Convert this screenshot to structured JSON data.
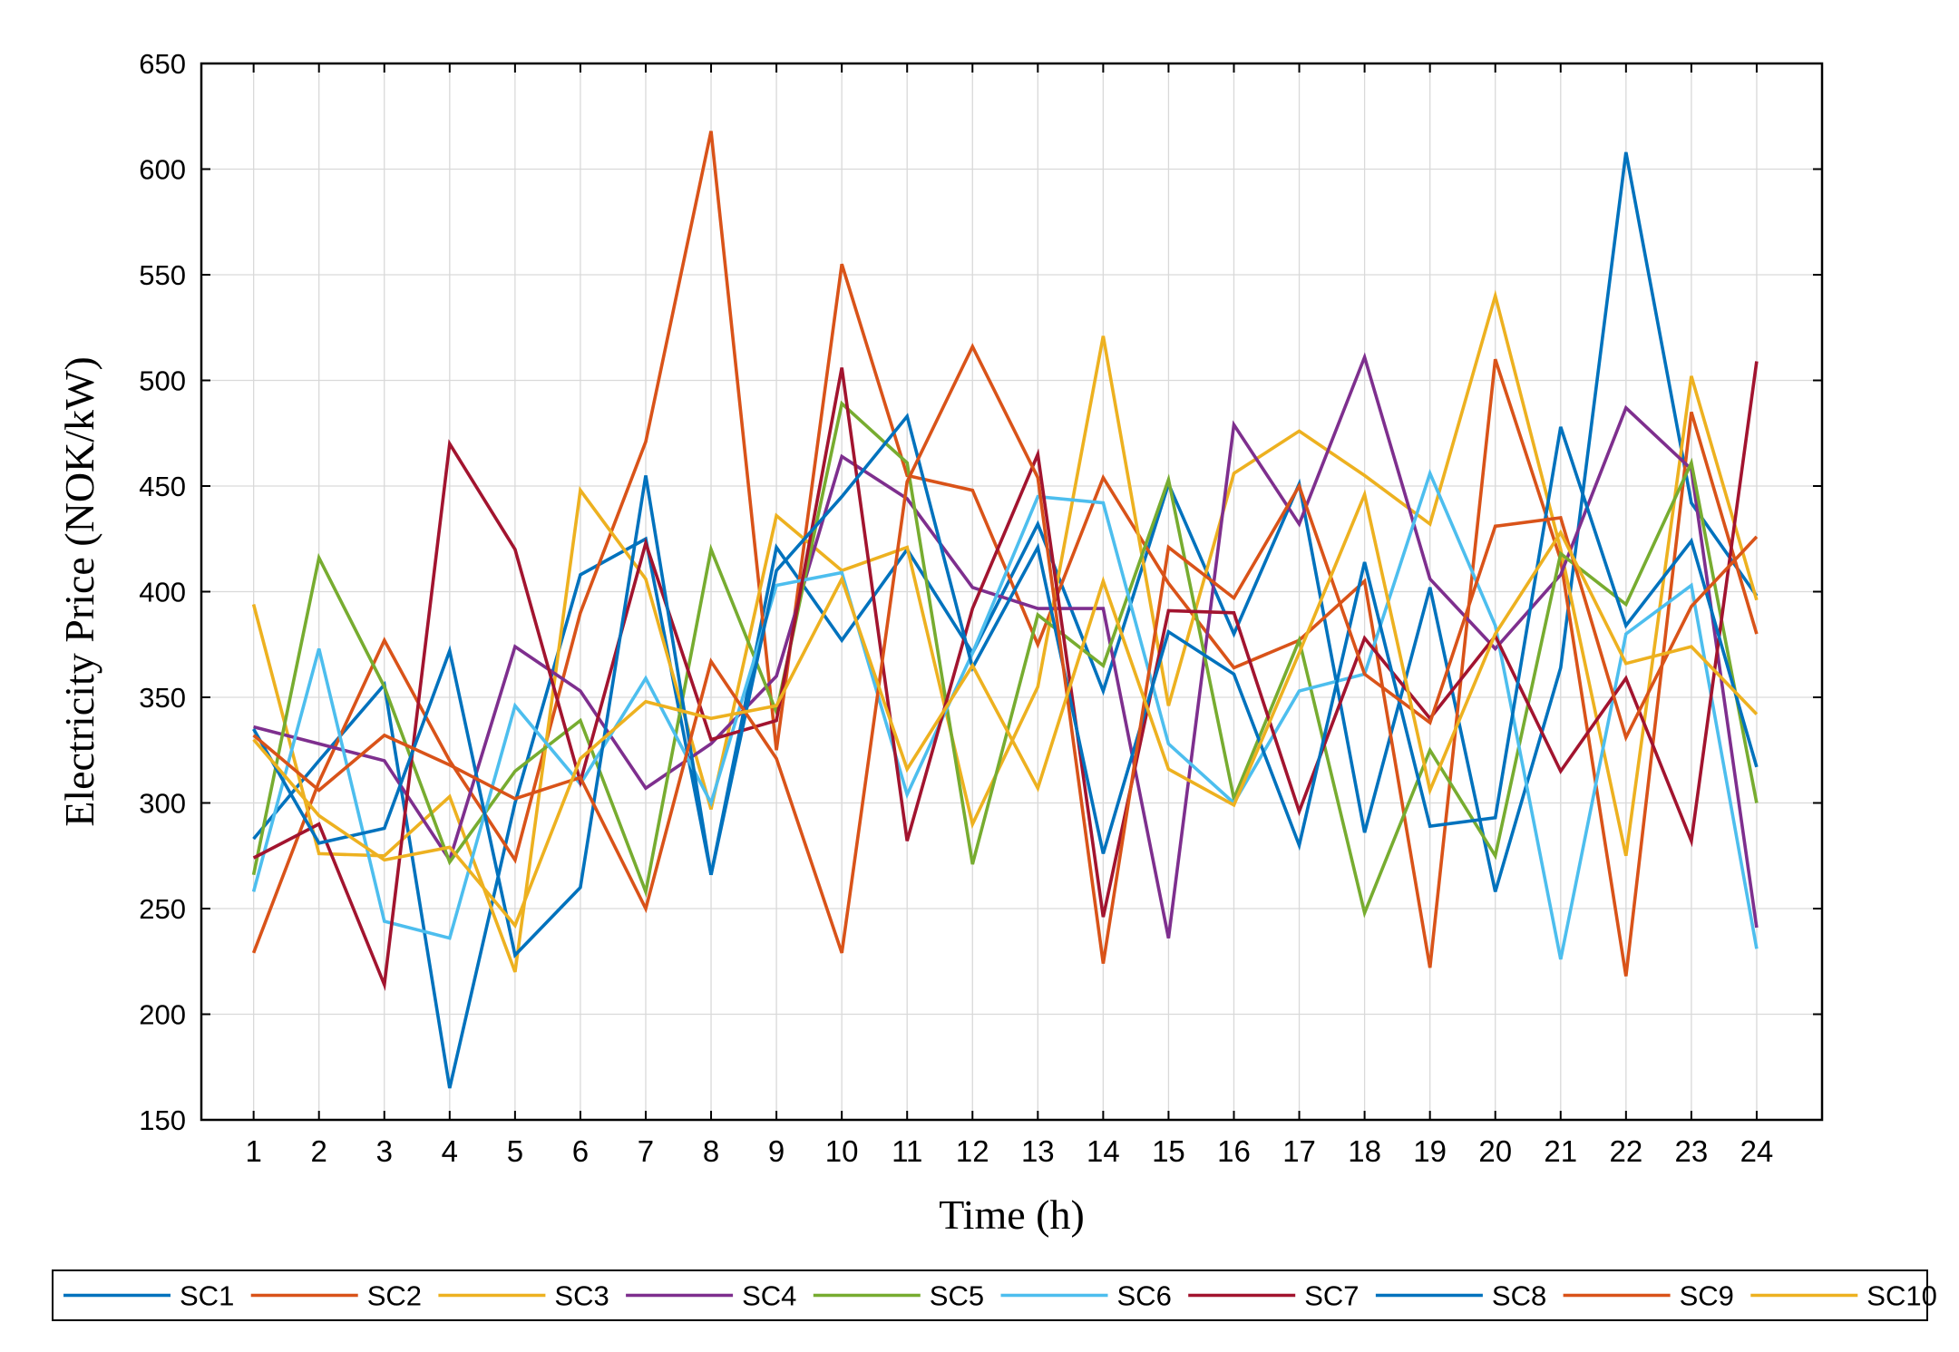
{
  "chart_data": {
    "type": "line",
    "title": "",
    "xlabel": "Time (h)",
    "ylabel": "Electricity Price (NOK/kW)",
    "x": [
      1,
      2,
      3,
      4,
      5,
      6,
      7,
      8,
      9,
      10,
      11,
      12,
      13,
      14,
      15,
      16,
      17,
      18,
      19,
      20,
      21,
      22,
      23,
      24
    ],
    "xtick_labels": [
      "1",
      "2",
      "3",
      "4",
      "5",
      "6",
      "7",
      "8",
      "9",
      "10",
      "11",
      "12",
      "13",
      "14",
      "15",
      "16",
      "17",
      "18",
      "19",
      "20",
      "21",
      "22",
      "23",
      "24"
    ],
    "xlim": [
      0.2,
      25
    ],
    "ylim": [
      150,
      650
    ],
    "yticks": [
      150,
      200,
      250,
      300,
      350,
      400,
      450,
      500,
      550,
      600,
      650
    ],
    "ytick_labels": [
      "150",
      "200",
      "250",
      "300",
      "350",
      "400",
      "450",
      "500",
      "550",
      "600",
      "650"
    ],
    "grid": true,
    "legend_position": "bottom",
    "series": [
      {
        "name": "SC1",
        "color": "#0072BD",
        "values": [
          283,
          320,
          356,
          165,
          300,
          408,
          425,
          266,
          421,
          377,
          420,
          371,
          432,
          353,
          451,
          380,
          451,
          286,
          402,
          258,
          364,
          608,
          442,
          398
        ]
      },
      {
        "name": "SC2",
        "color": "#D95319",
        "values": [
          229,
          310,
          377,
          320,
          273,
          390,
          471,
          618,
          325,
          555,
          455,
          448,
          375,
          454,
          404,
          364,
          377,
          405,
          222,
          510,
          415,
          218,
          485,
          380
        ]
      },
      {
        "name": "SC3",
        "color": "#EDB120",
        "values": [
          394,
          276,
          275,
          303,
          220,
          448,
          406,
          297,
          436,
          410,
          421,
          290,
          355,
          521,
          346,
          456,
          476,
          455,
          432,
          540,
          420,
          275,
          502,
          396
        ]
      },
      {
        "name": "SC4",
        "color": "#7E2F8E",
        "values": [
          336,
          328,
          320,
          273,
          374,
          353,
          307,
          328,
          360,
          464,
          444,
          402,
          392,
          392,
          236,
          479,
          432,
          511,
          406,
          373,
          408,
          487,
          458,
          241
        ]
      },
      {
        "name": "SC5",
        "color": "#77AC30",
        "values": [
          266,
          416,
          355,
          272,
          315,
          339,
          258,
          420,
          343,
          489,
          461,
          271,
          389,
          365,
          453,
          302,
          377,
          248,
          325,
          275,
          418,
          394,
          461,
          300
        ]
      },
      {
        "name": "SC6",
        "color": "#4DBEEE",
        "values": [
          258,
          373,
          244,
          236,
          346,
          309,
          359,
          300,
          403,
          409,
          304,
          371,
          445,
          442,
          328,
          300,
          353,
          361,
          456,
          384,
          226,
          380,
          403,
          231
        ]
      },
      {
        "name": "SC7",
        "color": "#A2142F",
        "values": [
          274,
          290,
          214,
          470,
          420,
          310,
          423,
          330,
          339,
          506,
          282,
          392,
          465,
          246,
          391,
          390,
          296,
          378,
          340,
          379,
          315,
          359,
          282,
          509
        ]
      },
      {
        "name": "SC8",
        "color": "#0072BD",
        "values": [
          335,
          281,
          288,
          372,
          228,
          260,
          455,
          266,
          410,
          445,
          483,
          364,
          421,
          276,
          381,
          361,
          280,
          414,
          289,
          293,
          478,
          384,
          424,
          317
        ]
      },
      {
        "name": "SC9",
        "color": "#D95319",
        "values": [
          332,
          306,
          332,
          318,
          302,
          312,
          250,
          367,
          321,
          229,
          452,
          516,
          454,
          224,
          421,
          397,
          450,
          361,
          338,
          431,
          435,
          331,
          393,
          426
        ]
      },
      {
        "name": "SC10",
        "color": "#EDB120",
        "values": [
          330,
          294,
          273,
          279,
          242,
          321,
          348,
          340,
          346,
          406,
          316,
          365,
          307,
          405,
          316,
          299,
          371,
          446,
          306,
          380,
          428,
          366,
          374,
          342
        ]
      }
    ]
  }
}
